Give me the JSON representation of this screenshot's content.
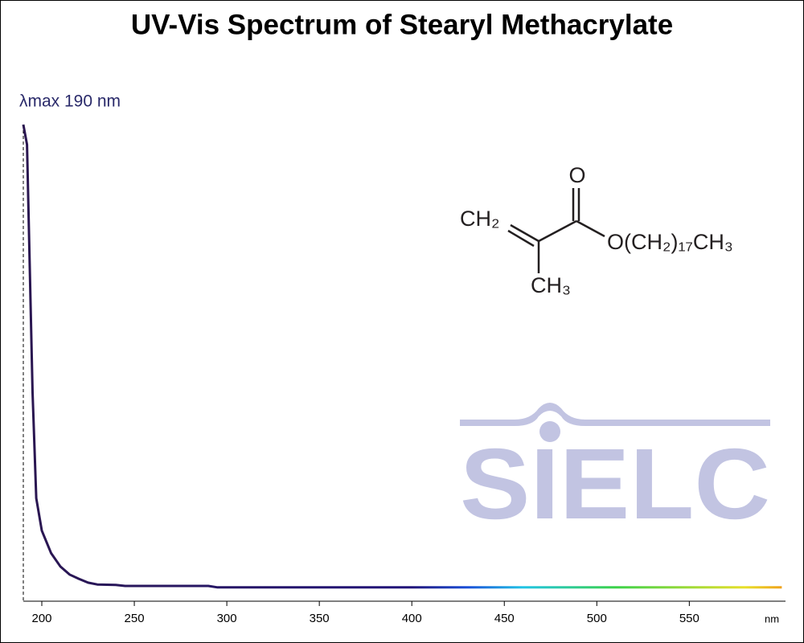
{
  "chart_data": {
    "type": "line",
    "title": "UV-Vis Spectrum of Stearyl Methacrylate",
    "x_label": "nm",
    "x": [
      190,
      192,
      195,
      197,
      200,
      205,
      210,
      215,
      220,
      225,
      230,
      240,
      245,
      290,
      295,
      350,
      400,
      450,
      500,
      550,
      600
    ],
    "values": [
      1.0,
      0.958,
      0.438,
      0.216,
      0.148,
      0.101,
      0.073,
      0.056,
      0.047,
      0.039,
      0.035,
      0.034,
      0.032,
      0.032,
      0.029,
      0.029,
      0.029,
      0.029,
      0.029,
      0.029,
      0.029
    ],
    "xlim": [
      190,
      602
    ],
    "ylim": [
      0,
      1
    ],
    "xticks": [
      200,
      250,
      300,
      350,
      400,
      450,
      500,
      550
    ],
    "gradient": [
      {
        "x": 190,
        "color": "#2a1650"
      },
      {
        "x": 400,
        "color": "#22157a"
      },
      {
        "x": 430,
        "color": "#1b4fd8"
      },
      {
        "x": 460,
        "color": "#22c4e6"
      },
      {
        "x": 510,
        "color": "#3bd24a"
      },
      {
        "x": 580,
        "color": "#e8e02a"
      },
      {
        "x": 600,
        "color": "#f0a21c"
      }
    ],
    "annotation": {
      "text": "λmax  190 nm",
      "x": 190
    },
    "structure": {
      "labels": [
        "O",
        "CH₂",
        "O(CH₂)₁₇CH₃",
        "CH₃"
      ]
    },
    "watermark": "SIELC"
  }
}
